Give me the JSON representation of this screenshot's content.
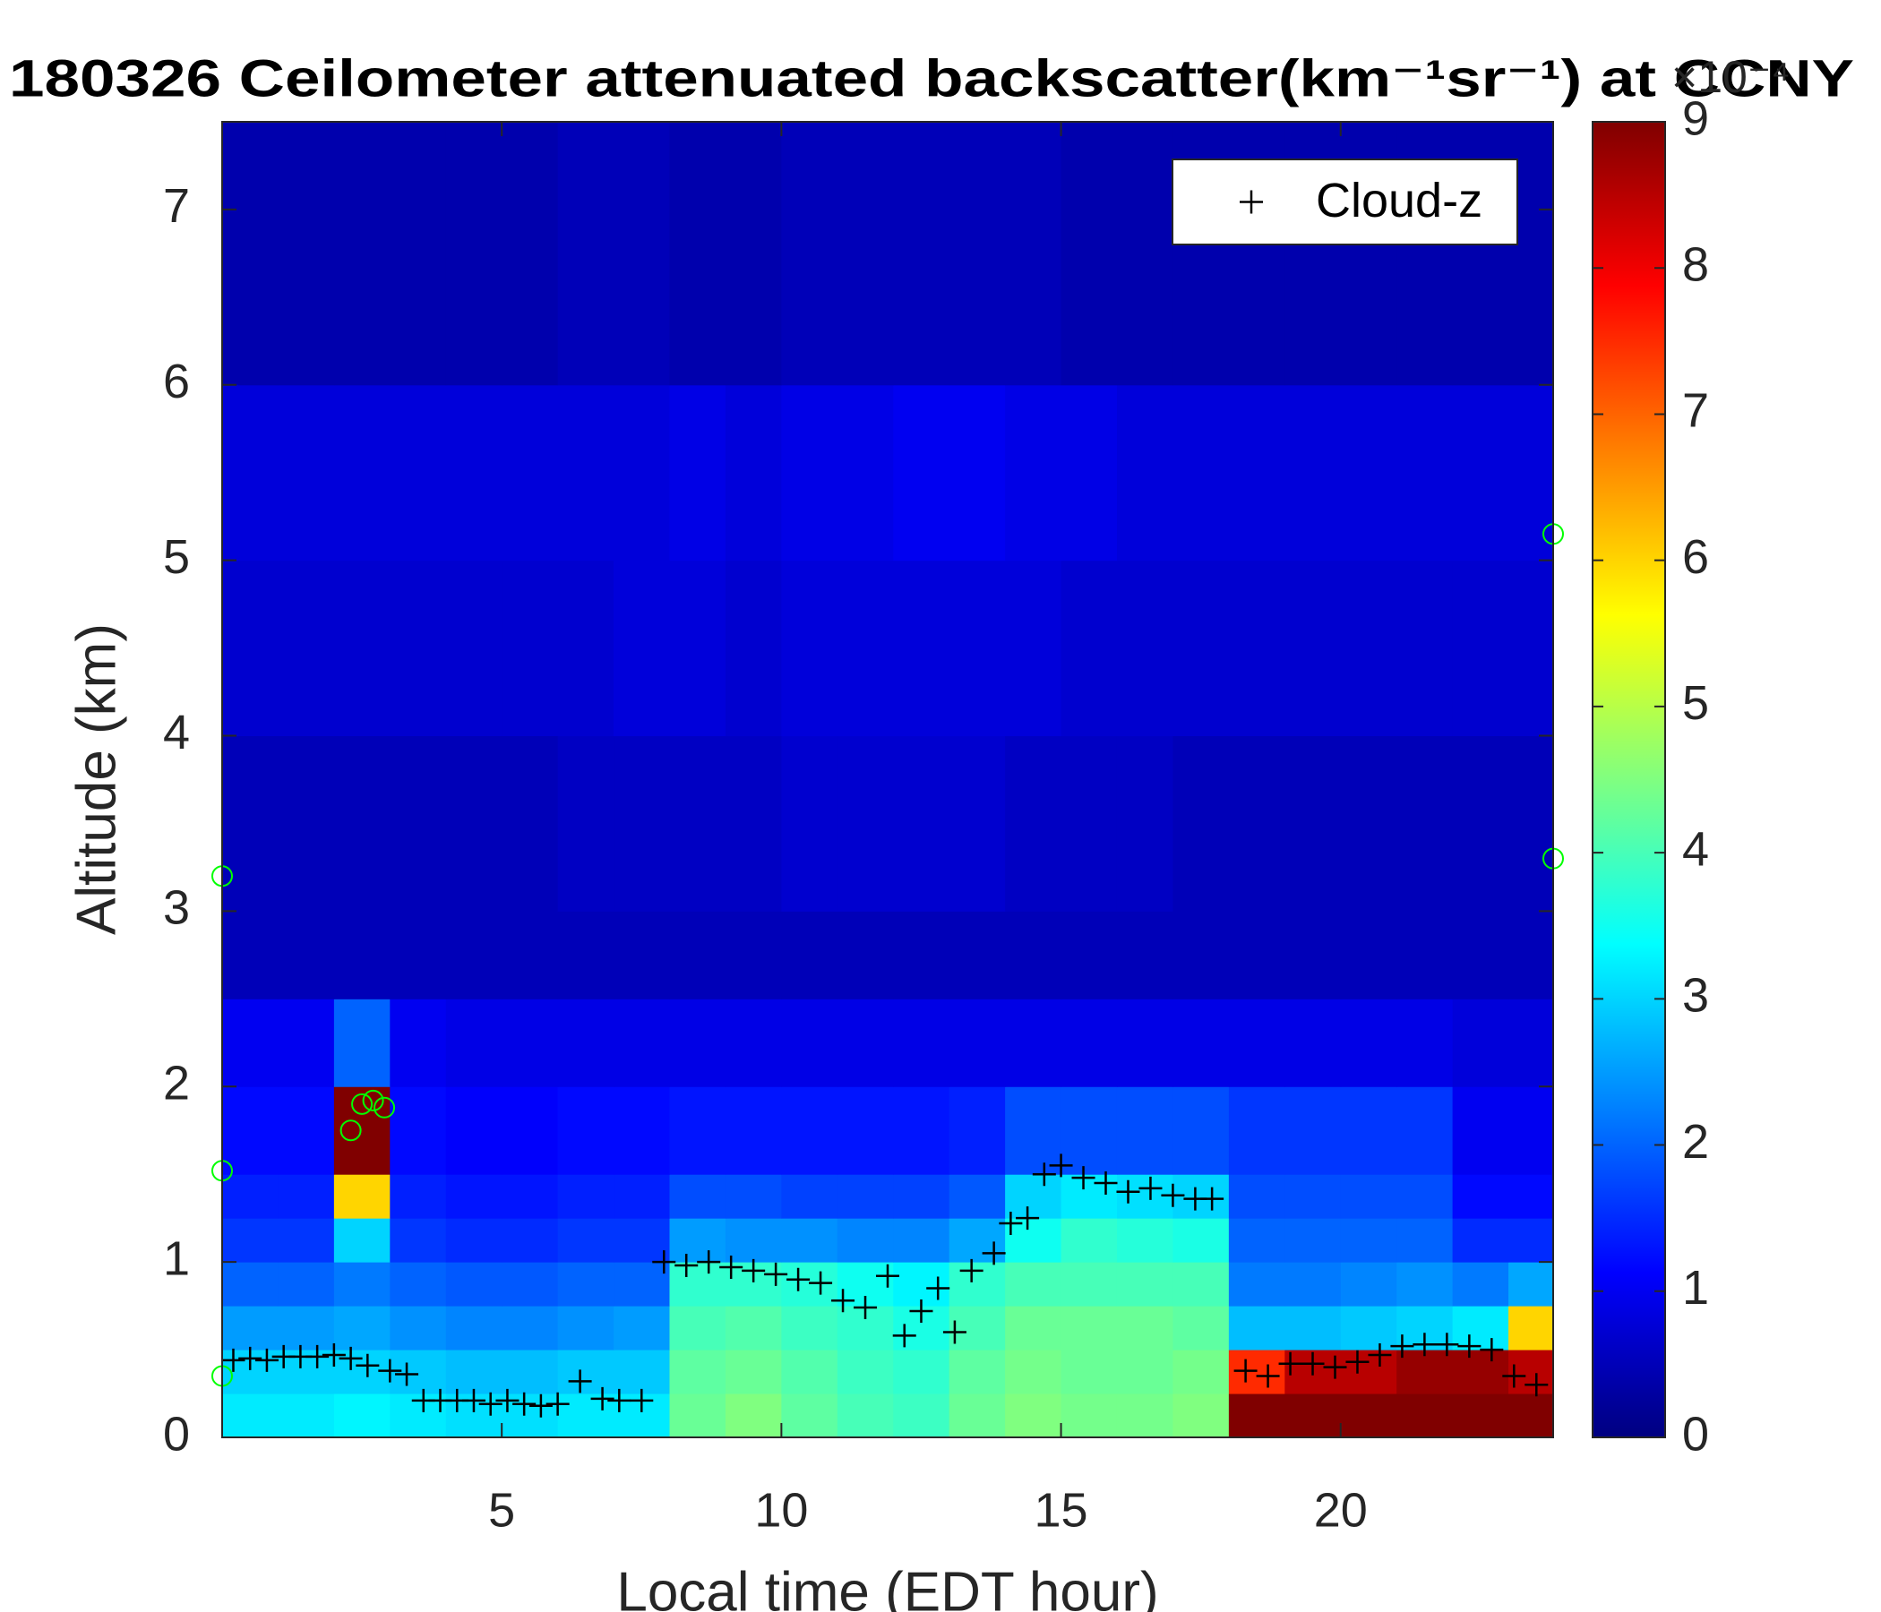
{
  "chart_data": {
    "type": "heatmap",
    "title": "180326 Ceilometer attenuated backscatter(km⁻¹sr⁻¹) at CCNY",
    "x_label": "Local time (EDT hour)",
    "y_label": "Altitude (km)",
    "xlim": [
      0,
      23.8
    ],
    "ylim": [
      0,
      7.5
    ],
    "xticks": [
      5,
      10,
      15,
      20
    ],
    "yticks": [
      0,
      1,
      2,
      3,
      4,
      5,
      6,
      7
    ],
    "colormap": "jet",
    "clim": [
      0,
      9
    ],
    "cticks": [
      0,
      1,
      2,
      3,
      4,
      5,
      6,
      7,
      8,
      9
    ],
    "colorbar_exponent": "×10⁻⁴",
    "x_bins": [
      0,
      1,
      2,
      3,
      4,
      5,
      6,
      7,
      8,
      9,
      10,
      11,
      12,
      13,
      14,
      15,
      16,
      17,
      18,
      19,
      20,
      21,
      22,
      23,
      23.8
    ],
    "y_bins": [
      0,
      0.25,
      0.5,
      0.75,
      1,
      1.25,
      1.5,
      2,
      2.5,
      3,
      4,
      5,
      6,
      7.5
    ],
    "z": [
      [
        3.2,
        3.2,
        3.3,
        3.2,
        3.1,
        3.1,
        3.2,
        3.2,
        4.3,
        4.5,
        4.2,
        4.0,
        3.9,
        4.3,
        4.5,
        4.4,
        4.4,
        4.5,
        9,
        9,
        9,
        9,
        9,
        9
      ],
      [
        3.0,
        3.0,
        3.0,
        2.9,
        2.8,
        2.8,
        2.9,
        2.9,
        4.2,
        4.3,
        4.1,
        3.9,
        3.8,
        4.2,
        4.4,
        4.3,
        4.3,
        4.4,
        7.5,
        8.5,
        8.5,
        8.8,
        8.8,
        8.5
      ],
      [
        2.5,
        2.5,
        2.6,
        2.4,
        2.3,
        2.3,
        2.4,
        2.5,
        4.0,
        4.1,
        3.9,
        3.8,
        3.6,
        4.0,
        4.3,
        4.3,
        4.3,
        4.2,
        2.8,
        2.8,
        2.9,
        3.0,
        3.2,
        6.0
      ],
      [
        2.0,
        2.0,
        2.2,
        2.0,
        1.9,
        1.9,
        2.0,
        2.0,
        3.8,
        3.8,
        3.7,
        3.5,
        3.3,
        3.8,
        4.0,
        4.0,
        4.0,
        4.0,
        2.2,
        2.2,
        2.3,
        2.4,
        2.2,
        2.6
      ],
      [
        1.6,
        1.6,
        3.0,
        1.6,
        1.5,
        1.5,
        1.6,
        1.6,
        2.5,
        2.4,
        2.4,
        2.3,
        2.3,
        2.6,
        3.5,
        3.8,
        3.7,
        3.6,
        2.0,
        2.0,
        2.0,
        2.0,
        1.5,
        1.5
      ],
      [
        1.4,
        1.4,
        6.0,
        1.4,
        1.3,
        1.3,
        1.4,
        1.4,
        1.8,
        1.8,
        1.7,
        1.7,
        1.7,
        1.9,
        3.0,
        3.2,
        3.1,
        3.0,
        1.8,
        1.8,
        1.8,
        1.8,
        1.2,
        1.2
      ],
      [
        1.2,
        1.2,
        9.0,
        1.2,
        1.1,
        1.1,
        1.2,
        1.2,
        1.3,
        1.3,
        1.3,
        1.3,
        1.3,
        1.4,
        1.8,
        1.8,
        1.8,
        1.8,
        1.6,
        1.6,
        1.6,
        1.6,
        1.0,
        1.0
      ],
      [
        1.0,
        1.0,
        2.0,
        1.0,
        0.9,
        0.9,
        0.9,
        0.9,
        0.9,
        0.9,
        0.9,
        0.9,
        0.9,
        0.9,
        0.9,
        0.9,
        0.9,
        0.9,
        0.9,
        0.9,
        0.9,
        0.9,
        0.8,
        0.8
      ],
      [
        0.5,
        0.5,
        0.5,
        0.5,
        0.5,
        0.5,
        0.5,
        0.5,
        0.5,
        0.5,
        0.5,
        0.5,
        0.5,
        0.5,
        0.5,
        0.5,
        0.5,
        0.5,
        0.5,
        0.5,
        0.5,
        0.5,
        0.5,
        0.5
      ],
      [
        0.5,
        0.5,
        0.5,
        0.5,
        0.5,
        0.5,
        0.6,
        0.6,
        0.6,
        0.6,
        0.7,
        0.7,
        0.7,
        0.7,
        0.6,
        0.6,
        0.6,
        0.5,
        0.5,
        0.5,
        0.5,
        0.5,
        0.5,
        0.5
      ],
      [
        0.7,
        0.7,
        0.7,
        0.7,
        0.7,
        0.7,
        0.7,
        0.8,
        0.8,
        0.7,
        0.8,
        0.8,
        0.8,
        0.8,
        0.8,
        0.7,
        0.7,
        0.7,
        0.7,
        0.7,
        0.7,
        0.7,
        0.7,
        0.7
      ],
      [
        0.8,
        0.8,
        0.8,
        0.8,
        0.8,
        0.8,
        0.8,
        0.8,
        0.9,
        0.8,
        0.9,
        0.9,
        1.0,
        1.0,
        0.9,
        0.9,
        0.8,
        0.8,
        0.8,
        0.8,
        0.8,
        0.8,
        0.8,
        0.8
      ],
      [
        0.4,
        0.4,
        0.4,
        0.4,
        0.4,
        0.4,
        0.5,
        0.5,
        0.4,
        0.4,
        0.5,
        0.5,
        0.5,
        0.5,
        0.5,
        0.4,
        0.4,
        0.4,
        0.4,
        0.4,
        0.4,
        0.4,
        0.4,
        0.4
      ]
    ],
    "legend": "upper right",
    "series": [
      {
        "name": "Cloud-z",
        "marker": "+",
        "color": "#000000",
        "x": [
          0.2,
          0.5,
          0.8,
          1.1,
          1.4,
          1.7,
          2.0,
          2.3,
          2.6,
          3.0,
          3.3,
          3.6,
          3.9,
          4.2,
          4.5,
          4.8,
          5.1,
          5.4,
          5.7,
          6.0,
          6.4,
          6.8,
          7.1,
          7.5,
          7.9,
          8.3,
          8.7,
          9.1,
          9.5,
          9.9,
          10.3,
          10.7,
          11.1,
          11.5,
          11.9,
          12.2,
          12.5,
          12.8,
          13.1,
          13.4,
          13.8,
          14.1,
          14.4,
          14.7,
          15.0,
          15.4,
          15.8,
          16.2,
          16.6,
          17.0,
          17.4,
          17.7,
          18.3,
          18.7,
          19.1,
          19.5,
          19.9,
          20.3,
          20.7,
          21.1,
          21.5,
          21.9,
          22.3,
          22.7,
          23.1,
          23.5
        ],
        "y": [
          0.44,
          0.45,
          0.44,
          0.46,
          0.46,
          0.46,
          0.47,
          0.45,
          0.41,
          0.38,
          0.36,
          0.21,
          0.21,
          0.21,
          0.21,
          0.19,
          0.21,
          0.19,
          0.18,
          0.19,
          0.32,
          0.22,
          0.21,
          0.21,
          1.0,
          0.98,
          1.0,
          0.97,
          0.95,
          0.93,
          0.9,
          0.88,
          0.78,
          0.74,
          0.92,
          0.58,
          0.72,
          0.85,
          0.6,
          0.95,
          1.05,
          1.22,
          1.25,
          1.5,
          1.55,
          1.48,
          1.45,
          1.4,
          1.42,
          1.38,
          1.36,
          1.36,
          0.38,
          0.35,
          0.42,
          0.42,
          0.4,
          0.43,
          0.47,
          0.52,
          0.53,
          0.53,
          0.52,
          0.5,
          0.35,
          0.3
        ]
      },
      {
        "marker": "o",
        "color": "#00ff00",
        "x": [
          0.0,
          0.0,
          0.0,
          2.3,
          2.5,
          2.7,
          2.9,
          23.8,
          23.8
        ],
        "y": [
          3.2,
          1.52,
          0.35,
          1.75,
          1.9,
          1.92,
          1.88,
          5.15,
          3.3
        ]
      }
    ]
  }
}
